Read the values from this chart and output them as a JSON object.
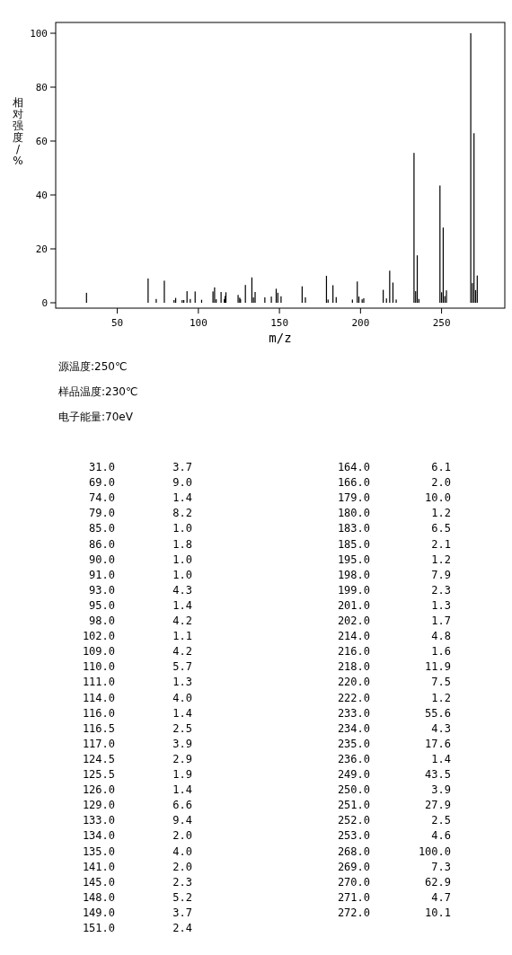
{
  "chart_data": {
    "type": "bar",
    "xlabel": "m/z",
    "ylabel": "相对强度/%",
    "color": "#000000",
    "x": [
      31,
      69,
      74,
      79,
      85,
      86,
      90,
      91,
      93,
      95,
      98,
      102,
      109,
      110,
      111,
      114,
      116,
      116.5,
      117,
      124.5,
      125.5,
      126,
      129,
      133,
      134,
      135,
      141,
      145,
      148,
      149,
      151,
      164,
      166,
      179,
      180,
      183,
      185,
      195,
      198,
      199,
      201,
      202,
      214,
      216,
      218,
      220,
      222,
      233,
      234,
      235,
      236,
      249,
      250,
      251,
      252,
      253,
      268,
      269,
      270,
      271,
      272
    ],
    "values": [
      3.7,
      9.0,
      1.4,
      8.2,
      1.0,
      1.8,
      1.0,
      1.0,
      4.3,
      1.4,
      4.2,
      1.1,
      4.2,
      5.7,
      1.3,
      4.0,
      1.4,
      2.5,
      3.9,
      2.9,
      1.9,
      1.4,
      6.6,
      9.4,
      2.0,
      4.0,
      2.0,
      2.3,
      5.2,
      3.7,
      2.4,
      6.1,
      2.0,
      10.0,
      1.2,
      6.5,
      2.1,
      1.2,
      7.9,
      2.3,
      1.3,
      1.7,
      4.8,
      1.6,
      11.9,
      7.5,
      1.2,
      55.6,
      4.3,
      17.6,
      1.4,
      43.5,
      3.9,
      27.9,
      2.5,
      4.6,
      100.0,
      7.3,
      62.9,
      4.7,
      10.1
    ],
    "xlim": [
      12,
      289
    ],
    "ylim": [
      -2,
      104
    ],
    "xticks": [
      50,
      100,
      150,
      200,
      250
    ],
    "yticks": [
      0,
      20,
      40,
      60,
      80,
      100
    ],
    "annotations": [
      "源温度:250℃",
      "样品温度:230℃",
      "电子能量:70eV",
      "31.0",
      "3.7",
      "69.0",
      "9.0",
      "74.0",
      "1.4",
      "79.0",
      "8.2",
      "85.0",
      "1.0",
      "86.0",
      "1.8",
      "90.0",
      "1.0",
      "91.0",
      "1.0",
      "93.0",
      "4.3",
      "95.0",
      "1.4",
      "98.0",
      "4.2",
      "102.0",
      "1.1",
      "109.0",
      "4.2",
      "110.0",
      "5.7",
      "111.0",
      "1.3",
      "114.0",
      "4.0",
      "116.0",
      "1.4",
      "116.5",
      "2.5",
      "117.0",
      "3.9",
      "124.5",
      "2.9",
      "125.5",
      "1.9",
      "126.0",
      "1.4",
      "129.0",
      "6.6",
      "133.0",
      "9.4",
      "134.0",
      "2.0",
      "135.0",
      "4.0",
      "141.0",
      "2.0",
      "145.0",
      "2.3",
      "148.0",
      "5.2",
      "149.0",
      "3.7",
      "151.0",
      "2.4",
      "164.0",
      "6.1",
      "166.0",
      "2.0",
      "179.0",
      "10.0",
      "180.0",
      "1.2",
      "183.0",
      "6.5",
      "185.0",
      "2.1",
      "195.0",
      "1.2",
      "198.0",
      "7.9",
      "199.0",
      "2.3",
      "201.0",
      "1.3",
      "202.0",
      "1.7",
      "214.0",
      "4.8",
      "216.0",
      "1.6",
      "218.0",
      "11.9",
      "220.0",
      "7.5",
      "222.0",
      "1.2",
      "233.0",
      "55.6",
      "234.0",
      "4.3",
      "235.0",
      "17.6",
      "236.0",
      "1.4",
      "249.0",
      "43.5",
      "250.0",
      "3.9",
      "251.0",
      "27.9",
      "252.0",
      "2.5",
      "253.0",
      "4.6",
      "268.0",
      "100.0",
      "269.0",
      "7.3",
      "270.0",
      "62.9",
      "271.0",
      "4.7",
      "272.0",
      "10.1"
    ]
  }
}
